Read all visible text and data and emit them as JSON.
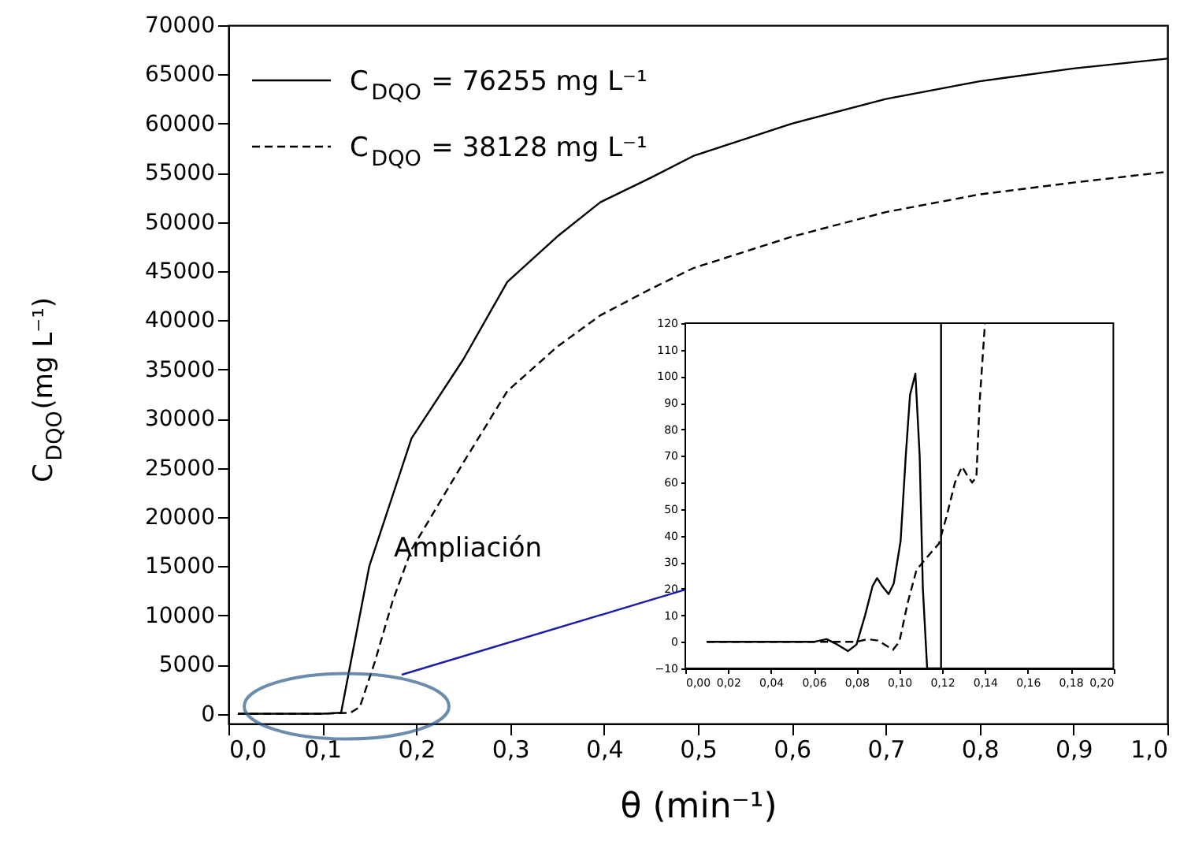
{
  "chart_data": [
    {
      "type": "line",
      "xlabel": "θ (min⁻¹)",
      "ylabel": "C$_{DQO}$(mg L⁻¹)",
      "xlim": [
        0,
        1
      ],
      "ylim": [
        -1000,
        70000
      ],
      "xticks": [
        {
          "value": 0,
          "label": "0,0"
        },
        {
          "value": 0.1,
          "label": "0,1"
        },
        {
          "value": 0.2,
          "label": "0,2"
        },
        {
          "value": 0.3,
          "label": "0,3"
        },
        {
          "value": 0.4,
          "label": "0,4"
        },
        {
          "value": 0.5,
          "label": "0,5"
        },
        {
          "value": 0.6,
          "label": "0,6"
        },
        {
          "value": 0.7,
          "label": "0,7"
        },
        {
          "value": 0.8,
          "label": "0,8"
        },
        {
          "value": 0.9,
          "label": "0,9"
        },
        {
          "value": 1,
          "label": "1,0"
        }
      ],
      "yticks": [
        0,
        5000,
        10000,
        15000,
        20000,
        25000,
        30000,
        35000,
        40000,
        45000,
        50000,
        55000,
        60000,
        65000,
        70000
      ],
      "grid": false,
      "legend": "top left",
      "annotations": [
        "Ampliación"
      ],
      "series": [
        {
          "name": "C$_{DQO}$ = 76255 mg L⁻¹",
          "color": "#000000",
          "line_style": "solid",
          "x": [
            0.01,
            0.05,
            0.1,
            0.12,
            0.125,
            0.15,
            0.195,
            0.25,
            0.297,
            0.35,
            0.396,
            0.45,
            0.495,
            0.6,
            0.7,
            0.8,
            0.9,
            1.0
          ],
          "values": [
            0,
            0,
            0,
            100,
            2600,
            15000,
            28000,
            36000,
            43900,
            48500,
            52000,
            54500,
            56700,
            60000,
            62500,
            64300,
            65600,
            66600
          ]
        },
        {
          "name": "C$_{DQO}$ = 38128 mg L⁻¹",
          "color": "#000000",
          "line_style": "dashed",
          "x": [
            0.01,
            0.1,
            0.13,
            0.14,
            0.156,
            0.175,
            0.195,
            0.25,
            0.297,
            0.35,
            0.396,
            0.45,
            0.495,
            0.6,
            0.7,
            0.8,
            0.9,
            1.0
          ],
          "values": [
            0,
            0,
            100,
            700,
            5300,
            11500,
            16700,
            25500,
            32800,
            37300,
            40500,
            43200,
            45300,
            48500,
            51000,
            52800,
            54000,
            55100
          ]
        }
      ]
    },
    {
      "type": "line",
      "xlim": [
        0,
        0.2
      ],
      "ylim": [
        -10,
        120
      ],
      "xticks": [
        {
          "value": 0,
          "label": "0,00"
        },
        {
          "value": 0.02,
          "label": "0,02"
        },
        {
          "value": 0.04,
          "label": "0,04"
        },
        {
          "value": 0.06,
          "label": "0,06"
        },
        {
          "value": 0.08,
          "label": "0,08"
        },
        {
          "value": 0.1,
          "label": "0,10"
        },
        {
          "value": 0.12,
          "label": "0,12"
        },
        {
          "value": 0.14,
          "label": "0,14"
        },
        {
          "value": 0.16,
          "label": "0,16"
        },
        {
          "value": 0.18,
          "label": "0,18"
        },
        {
          "value": 0.2,
          "label": "0,20"
        }
      ],
      "yticks": [
        -10,
        0,
        10,
        20,
        30,
        40,
        50,
        60,
        70,
        80,
        90,
        100,
        110,
        120
      ],
      "grid": false,
      "series": [
        {
          "color": "#000000",
          "line_style": "solid",
          "x": [
            0.01,
            0.06,
            0.066,
            0.071,
            0.076,
            0.08,
            0.084,
            0.0875,
            0.0896,
            0.092,
            0.095,
            0.0974,
            0.1006,
            0.103,
            0.105,
            0.1075,
            0.1095,
            0.111,
            0.113,
            0.1195,
            0.1195
          ],
          "values": [
            0,
            0,
            1,
            -1,
            -3.5,
            -1,
            10,
            21,
            24,
            21,
            18,
            22,
            38,
            70,
            93,
            101,
            70,
            20,
            -10,
            -10,
            120
          ]
        },
        {
          "color": "#000000",
          "line_style": "dashed",
          "x": [
            0.01,
            0.08,
            0.085,
            0.09,
            0.095,
            0.097,
            0.1,
            0.104,
            0.108,
            0.112,
            0.1185,
            0.122,
            0.126,
            0.1293,
            0.1315,
            0.134,
            0.136,
            0.1375,
            0.14
          ],
          "values": [
            0,
            0,
            1,
            0.5,
            -2,
            -3,
            0,
            15,
            27,
            31,
            37,
            47,
            60,
            66,
            63,
            60,
            62,
            90,
            120
          ]
        }
      ]
    }
  ]
}
